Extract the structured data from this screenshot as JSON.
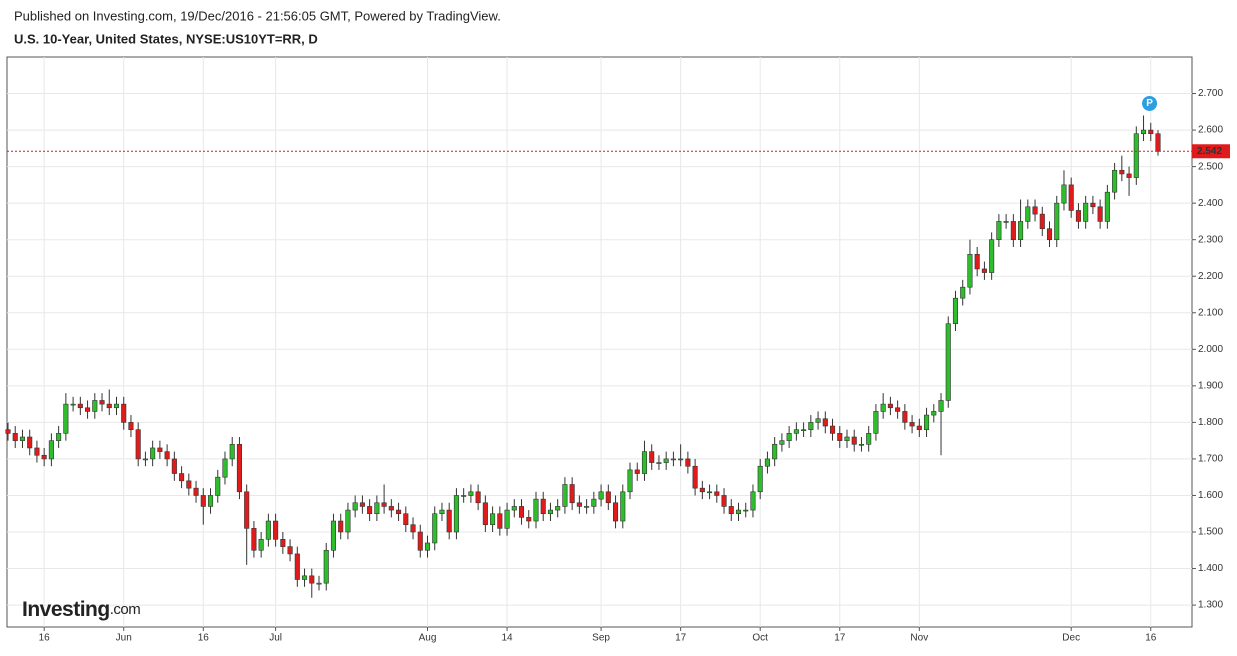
{
  "header": {
    "published": "Published on Investing.com, 19/Dec/2016 - 21:56:05 GMT, Powered by TradingView.",
    "symbol": "U.S. 10-Year, United States, NYSE:US10YT=RR, D"
  },
  "logo": {
    "name": "Investing",
    "suffix": ".com"
  },
  "chart_data": {
    "type": "candlestick",
    "up_color": "#2dbd2d",
    "down_color": "#e01b1b",
    "grid": true,
    "marker": "P",
    "categories": [
      null,
      null,
      null,
      null,
      null,
      "16",
      null,
      null,
      null,
      null,
      null,
      null,
      null,
      null,
      null,
      null,
      "Jun",
      null,
      null,
      null,
      null,
      null,
      null,
      null,
      null,
      null,
      null,
      "16",
      null,
      null,
      null,
      null,
      null,
      null,
      null,
      null,
      null,
      "Jul",
      null,
      null,
      null,
      null,
      null,
      null,
      null,
      null,
      null,
      null,
      null,
      null,
      null,
      null,
      null,
      null,
      null,
      null,
      null,
      null,
      "Aug",
      null,
      null,
      null,
      null,
      null,
      null,
      null,
      null,
      null,
      null,
      "14",
      null,
      null,
      null,
      null,
      null,
      null,
      null,
      null,
      null,
      null,
      null,
      null,
      "Sep",
      null,
      null,
      null,
      null,
      null,
      null,
      null,
      null,
      null,
      null,
      "17",
      null,
      null,
      null,
      null,
      null,
      null,
      null,
      null,
      null,
      null,
      "Oct",
      null,
      null,
      null,
      null,
      null,
      null,
      null,
      null,
      null,
      null,
      "17",
      null,
      null,
      null,
      null,
      null,
      null,
      null,
      null,
      null,
      null,
      "Nov",
      null,
      null,
      null,
      null,
      null,
      null,
      null,
      null,
      null,
      null,
      null,
      null,
      null,
      null,
      null,
      null,
      null,
      null,
      null,
      null,
      "Dec",
      null,
      null,
      null,
      null,
      null,
      null,
      null,
      null,
      null,
      null,
      "16",
      null
    ],
    "open": [
      1.78,
      1.77,
      1.75,
      1.76,
      1.73,
      1.71,
      1.7,
      1.75,
      1.77,
      1.85,
      1.85,
      1.84,
      1.83,
      1.86,
      1.85,
      1.84,
      1.85,
      1.8,
      1.78,
      1.7,
      1.7,
      1.73,
      1.72,
      1.7,
      1.66,
      1.64,
      1.62,
      1.6,
      1.57,
      1.6,
      1.65,
      1.7,
      1.74,
      1.61,
      1.51,
      1.45,
      1.48,
      1.53,
      1.48,
      1.46,
      1.44,
      1.37,
      1.38,
      1.36,
      1.36,
      1.45,
      1.53,
      1.5,
      1.56,
      1.58,
      1.57,
      1.55,
      1.58,
      1.57,
      1.56,
      1.55,
      1.52,
      1.5,
      1.45,
      1.47,
      1.55,
      1.56,
      1.5,
      1.6,
      1.6,
      1.61,
      1.58,
      1.52,
      1.55,
      1.51,
      1.56,
      1.57,
      1.54,
      1.53,
      1.59,
      1.55,
      1.56,
      1.57,
      1.63,
      1.58,
      1.57,
      1.57,
      1.59,
      1.61,
      1.58,
      1.53,
      1.61,
      1.67,
      1.66,
      1.72,
      1.69,
      1.69,
      1.7,
      1.7,
      1.7,
      1.68,
      1.62,
      1.61,
      1.61,
      1.6,
      1.57,
      1.55,
      1.56,
      1.56,
      1.61,
      1.68,
      1.7,
      1.74,
      1.75,
      1.77,
      1.78,
      1.78,
      1.8,
      1.81,
      1.79,
      1.77,
      1.75,
      1.76,
      1.74,
      1.74,
      1.77,
      1.83,
      1.85,
      1.84,
      1.83,
      1.8,
      1.79,
      1.78,
      1.82,
      1.83,
      1.86,
      2.07,
      2.14,
      2.17,
      2.26,
      2.22,
      2.21,
      2.3,
      2.35,
      2.35,
      2.3,
      2.35,
      2.39,
      2.37,
      2.33,
      2.3,
      2.4,
      2.45,
      2.38,
      2.35,
      2.4,
      2.39,
      2.35,
      2.43,
      2.49,
      2.48,
      2.47,
      2.59,
      2.6,
      2.59
    ],
    "high": [
      1.8,
      1.79,
      1.78,
      1.78,
      1.75,
      1.73,
      1.77,
      1.79,
      1.88,
      1.87,
      1.87,
      1.86,
      1.88,
      1.88,
      1.89,
      1.87,
      1.87,
      1.82,
      1.8,
      1.72,
      1.75,
      1.75,
      1.74,
      1.72,
      1.68,
      1.66,
      1.64,
      1.62,
      1.62,
      1.67,
      1.72,
      1.76,
      1.76,
      1.63,
      1.53,
      1.5,
      1.55,
      1.55,
      1.5,
      1.48,
      1.46,
      1.4,
      1.4,
      1.38,
      1.47,
      1.55,
      1.55,
      1.58,
      1.6,
      1.6,
      1.59,
      1.6,
      1.63,
      1.59,
      1.58,
      1.57,
      1.54,
      1.52,
      1.49,
      1.57,
      1.58,
      1.58,
      1.62,
      1.62,
      1.63,
      1.63,
      1.6,
      1.57,
      1.57,
      1.58,
      1.59,
      1.59,
      1.56,
      1.61,
      1.61,
      1.58,
      1.59,
      1.65,
      1.65,
      1.6,
      1.59,
      1.61,
      1.63,
      1.63,
      1.6,
      1.63,
      1.69,
      1.69,
      1.75,
      1.74,
      1.71,
      1.72,
      1.72,
      1.74,
      1.72,
      1.7,
      1.64,
      1.63,
      1.63,
      1.62,
      1.59,
      1.58,
      1.58,
      1.63,
      1.7,
      1.72,
      1.76,
      1.77,
      1.79,
      1.8,
      1.8,
      1.82,
      1.83,
      1.83,
      1.81,
      1.79,
      1.78,
      1.78,
      1.76,
      1.79,
      1.85,
      1.88,
      1.87,
      1.86,
      1.85,
      1.82,
      1.81,
      1.84,
      1.85,
      1.88,
      2.09,
      2.16,
      2.19,
      2.3,
      2.28,
      2.24,
      2.32,
      2.37,
      2.37,
      2.37,
      2.41,
      2.41,
      2.41,
      2.39,
      2.35,
      2.42,
      2.49,
      2.47,
      2.4,
      2.42,
      2.42,
      2.41,
      2.45,
      2.51,
      2.53,
      2.5,
      2.61,
      2.64,
      2.62,
      2.6
    ],
    "low": [
      1.75,
      1.73,
      1.73,
      1.71,
      1.69,
      1.68,
      1.68,
      1.73,
      1.75,
      1.83,
      1.82,
      1.81,
      1.81,
      1.83,
      1.82,
      1.82,
      1.78,
      1.76,
      1.68,
      1.68,
      1.68,
      1.7,
      1.68,
      1.64,
      1.62,
      1.6,
      1.58,
      1.52,
      1.55,
      1.58,
      1.63,
      1.68,
      1.59,
      1.41,
      1.43,
      1.43,
      1.46,
      1.46,
      1.44,
      1.42,
      1.35,
      1.35,
      1.32,
      1.34,
      1.34,
      1.43,
      1.48,
      1.48,
      1.54,
      1.55,
      1.53,
      1.53,
      1.55,
      1.54,
      1.53,
      1.5,
      1.48,
      1.43,
      1.43,
      1.45,
      1.53,
      1.48,
      1.48,
      1.58,
      1.58,
      1.56,
      1.5,
      1.5,
      1.49,
      1.49,
      1.54,
      1.52,
      1.51,
      1.51,
      1.53,
      1.53,
      1.54,
      1.55,
      1.56,
      1.55,
      1.55,
      1.55,
      1.57,
      1.56,
      1.51,
      1.51,
      1.59,
      1.64,
      1.64,
      1.67,
      1.67,
      1.67,
      1.68,
      1.68,
      1.66,
      1.6,
      1.59,
      1.59,
      1.58,
      1.55,
      1.53,
      1.53,
      1.54,
      1.54,
      1.59,
      1.66,
      1.68,
      1.72,
      1.73,
      1.75,
      1.76,
      1.76,
      1.78,
      1.77,
      1.75,
      1.73,
      1.73,
      1.72,
      1.72,
      1.72,
      1.75,
      1.81,
      1.82,
      1.81,
      1.78,
      1.77,
      1.76,
      1.76,
      1.8,
      1.71,
      1.84,
      2.05,
      2.12,
      2.15,
      2.2,
      2.19,
      2.19,
      2.28,
      2.33,
      2.28,
      2.28,
      2.33,
      2.35,
      2.31,
      2.28,
      2.28,
      2.38,
      2.36,
      2.33,
      2.33,
      2.37,
      2.33,
      2.33,
      2.41,
      2.46,
      2.42,
      2.45,
      2.57,
      2.57,
      2.53
    ],
    "close": [
      1.77,
      1.75,
      1.76,
      1.73,
      1.71,
      1.7,
      1.75,
      1.77,
      1.85,
      1.85,
      1.84,
      1.83,
      1.86,
      1.85,
      1.84,
      1.85,
      1.8,
      1.78,
      1.7,
      1.7,
      1.73,
      1.72,
      1.7,
      1.66,
      1.64,
      1.62,
      1.6,
      1.57,
      1.6,
      1.65,
      1.7,
      1.74,
      1.61,
      1.51,
      1.45,
      1.48,
      1.53,
      1.48,
      1.46,
      1.44,
      1.37,
      1.38,
      1.36,
      1.36,
      1.45,
      1.53,
      1.5,
      1.56,
      1.58,
      1.57,
      1.55,
      1.58,
      1.57,
      1.56,
      1.55,
      1.52,
      1.5,
      1.45,
      1.47,
      1.55,
      1.56,
      1.5,
      1.6,
      1.6,
      1.61,
      1.58,
      1.52,
      1.55,
      1.51,
      1.56,
      1.57,
      1.54,
      1.53,
      1.59,
      1.55,
      1.56,
      1.57,
      1.63,
      1.58,
      1.57,
      1.57,
      1.59,
      1.61,
      1.58,
      1.53,
      1.61,
      1.67,
      1.66,
      1.72,
      1.69,
      1.69,
      1.7,
      1.7,
      1.7,
      1.68,
      1.62,
      1.61,
      1.61,
      1.6,
      1.57,
      1.55,
      1.56,
      1.56,
      1.61,
      1.68,
      1.7,
      1.74,
      1.75,
      1.77,
      1.78,
      1.78,
      1.8,
      1.81,
      1.79,
      1.77,
      1.75,
      1.76,
      1.74,
      1.74,
      1.77,
      1.83,
      1.85,
      1.84,
      1.83,
      1.8,
      1.79,
      1.78,
      1.82,
      1.83,
      1.86,
      2.07,
      2.14,
      2.17,
      2.26,
      2.22,
      2.21,
      2.3,
      2.35,
      2.35,
      2.3,
      2.35,
      2.39,
      2.37,
      2.33,
      2.3,
      2.4,
      2.45,
      2.38,
      2.35,
      2.4,
      2.39,
      2.35,
      2.43,
      2.49,
      2.48,
      2.47,
      2.59,
      2.6,
      2.59,
      2.542
    ],
    "ylim": [
      1.24,
      2.8
    ],
    "yticks": [
      {
        "value": 1.3,
        "label": "1.300"
      },
      {
        "value": 1.4,
        "label": "1.400"
      },
      {
        "value": 1.5,
        "label": "1.500"
      },
      {
        "value": 1.6,
        "label": "1.600"
      },
      {
        "value": 1.7,
        "label": "1.700"
      },
      {
        "value": 1.8,
        "label": "1.800"
      },
      {
        "value": 1.9,
        "label": "1.900"
      },
      {
        "value": 2.0,
        "label": "2.000"
      },
      {
        "value": 2.1,
        "label": "2.100"
      },
      {
        "value": 2.2,
        "label": "2.200"
      },
      {
        "value": 2.3,
        "label": "2.300"
      },
      {
        "value": 2.4,
        "label": "2.400"
      },
      {
        "value": 2.5,
        "label": "2.500"
      },
      {
        "value": 2.6,
        "label": "2.600"
      },
      {
        "value": 2.7,
        "label": "2.700"
      }
    ]
  }
}
